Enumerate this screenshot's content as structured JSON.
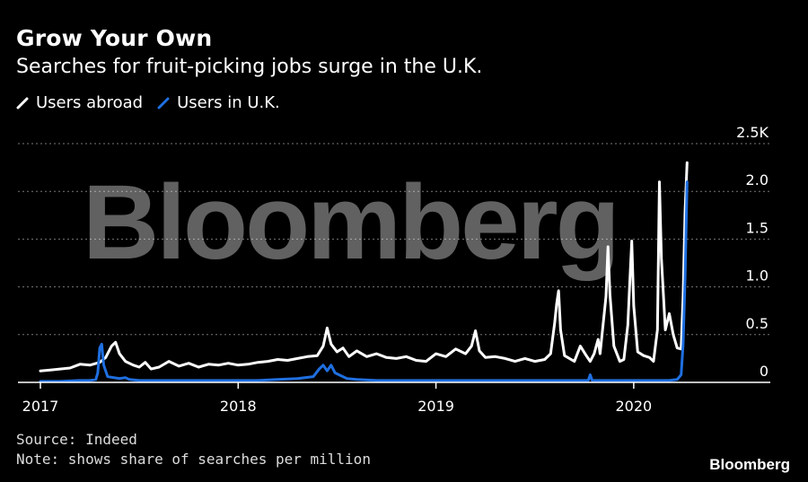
{
  "title": "Grow Your Own",
  "subtitle": "Searches for fruit-picking jobs surge in the U.K.",
  "source": "Source: Indeed",
  "note": "Note: shows share of searches per million",
  "brand": "Bloomberg",
  "watermark": "Bloomberg",
  "colors": {
    "abroad": "#ffffff",
    "uk": "#1f6fe0",
    "grid": "#777777",
    "background": "#000000"
  },
  "chart_data": {
    "type": "line",
    "y_unit_note": "share of searches per million",
    "ylim": [
      0,
      2.5
    ],
    "yticks": [
      0,
      0.5,
      1.0,
      1.5,
      2.0,
      2.5
    ],
    "ytick_labels": [
      "0",
      "0.5",
      "1.0",
      "1.5",
      "2.0",
      "2.5K"
    ],
    "xlim": [
      2017.0,
      2020.45
    ],
    "xticks": [
      2017,
      2018,
      2019,
      2020
    ],
    "xtick_labels": [
      "2017",
      "2018",
      "2019",
      "2020"
    ],
    "grid": true,
    "legend_position": "top-left",
    "series": [
      {
        "name": "Users abroad",
        "color": "#ffffff",
        "points": [
          [
            2017.0,
            0.12
          ],
          [
            2017.05,
            0.13
          ],
          [
            2017.1,
            0.14
          ],
          [
            2017.15,
            0.15
          ],
          [
            2017.2,
            0.19
          ],
          [
            2017.25,
            0.18
          ],
          [
            2017.3,
            0.21
          ],
          [
            2017.33,
            0.26
          ],
          [
            2017.36,
            0.38
          ],
          [
            2017.38,
            0.42
          ],
          [
            2017.4,
            0.3
          ],
          [
            2017.43,
            0.22
          ],
          [
            2017.47,
            0.18
          ],
          [
            2017.5,
            0.16
          ],
          [
            2017.53,
            0.21
          ],
          [
            2017.56,
            0.14
          ],
          [
            2017.6,
            0.16
          ],
          [
            2017.65,
            0.22
          ],
          [
            2017.7,
            0.17
          ],
          [
            2017.75,
            0.2
          ],
          [
            2017.8,
            0.16
          ],
          [
            2017.85,
            0.19
          ],
          [
            2017.9,
            0.18
          ],
          [
            2017.95,
            0.2
          ],
          [
            2018.0,
            0.18
          ],
          [
            2018.05,
            0.19
          ],
          [
            2018.1,
            0.21
          ],
          [
            2018.15,
            0.22
          ],
          [
            2018.2,
            0.24
          ],
          [
            2018.25,
            0.23
          ],
          [
            2018.3,
            0.25
          ],
          [
            2018.35,
            0.27
          ],
          [
            2018.4,
            0.28
          ],
          [
            2018.43,
            0.38
          ],
          [
            2018.45,
            0.57
          ],
          [
            2018.47,
            0.4
          ],
          [
            2018.5,
            0.32
          ],
          [
            2018.53,
            0.36
          ],
          [
            2018.56,
            0.27
          ],
          [
            2018.6,
            0.33
          ],
          [
            2018.65,
            0.27
          ],
          [
            2018.7,
            0.3
          ],
          [
            2018.75,
            0.26
          ],
          [
            2018.8,
            0.25
          ],
          [
            2018.85,
            0.27
          ],
          [
            2018.9,
            0.23
          ],
          [
            2018.95,
            0.22
          ],
          [
            2019.0,
            0.3
          ],
          [
            2019.05,
            0.27
          ],
          [
            2019.1,
            0.35
          ],
          [
            2019.15,
            0.3
          ],
          [
            2019.18,
            0.38
          ],
          [
            2019.2,
            0.54
          ],
          [
            2019.22,
            0.33
          ],
          [
            2019.25,
            0.26
          ],
          [
            2019.3,
            0.27
          ],
          [
            2019.35,
            0.25
          ],
          [
            2019.4,
            0.22
          ],
          [
            2019.45,
            0.25
          ],
          [
            2019.5,
            0.22
          ],
          [
            2019.55,
            0.24
          ],
          [
            2019.58,
            0.3
          ],
          [
            2019.6,
            0.62
          ],
          [
            2019.61,
            0.82
          ],
          [
            2019.62,
            0.96
          ],
          [
            2019.63,
            0.55
          ],
          [
            2019.65,
            0.28
          ],
          [
            2019.7,
            0.22
          ],
          [
            2019.73,
            0.38
          ],
          [
            2019.76,
            0.28
          ],
          [
            2019.78,
            0.22
          ],
          [
            2019.8,
            0.3
          ],
          [
            2019.82,
            0.45
          ],
          [
            2019.83,
            0.3
          ],
          [
            2019.86,
            0.9
          ],
          [
            2019.87,
            1.42
          ],
          [
            2019.88,
            0.92
          ],
          [
            2019.9,
            0.38
          ],
          [
            2019.93,
            0.22
          ],
          [
            2019.95,
            0.24
          ],
          [
            2019.97,
            0.6
          ],
          [
            2019.98,
            1.05
          ],
          [
            2019.99,
            1.48
          ],
          [
            2020.0,
            0.8
          ],
          [
            2020.02,
            0.32
          ],
          [
            2020.05,
            0.28
          ],
          [
            2020.08,
            0.26
          ],
          [
            2020.1,
            0.22
          ],
          [
            2020.12,
            0.55
          ],
          [
            2020.13,
            2.1
          ],
          [
            2020.14,
            1.3
          ],
          [
            2020.16,
            0.55
          ],
          [
            2020.18,
            0.72
          ],
          [
            2020.2,
            0.5
          ],
          [
            2020.22,
            0.36
          ],
          [
            2020.24,
            0.35
          ],
          [
            2020.25,
            0.9
          ],
          [
            2020.26,
            1.8
          ],
          [
            2020.27,
            2.3
          ]
        ]
      },
      {
        "name": "Users in U.K.",
        "color": "#1f6fe0",
        "points": [
          [
            2017.0,
            0.01
          ],
          [
            2017.1,
            0.01
          ],
          [
            2017.2,
            0.02
          ],
          [
            2017.25,
            0.02
          ],
          [
            2017.28,
            0.03
          ],
          [
            2017.29,
            0.1
          ],
          [
            2017.3,
            0.36
          ],
          [
            2017.31,
            0.4
          ],
          [
            2017.32,
            0.18
          ],
          [
            2017.34,
            0.06
          ],
          [
            2017.37,
            0.05
          ],
          [
            2017.4,
            0.04
          ],
          [
            2017.43,
            0.05
          ],
          [
            2017.45,
            0.03
          ],
          [
            2017.5,
            0.02
          ],
          [
            2017.6,
            0.02
          ],
          [
            2017.7,
            0.02
          ],
          [
            2017.8,
            0.02
          ],
          [
            2017.9,
            0.02
          ],
          [
            2018.0,
            0.02
          ],
          [
            2018.1,
            0.02
          ],
          [
            2018.2,
            0.03
          ],
          [
            2018.3,
            0.04
          ],
          [
            2018.38,
            0.06
          ],
          [
            2018.41,
            0.14
          ],
          [
            2018.43,
            0.18
          ],
          [
            2018.45,
            0.12
          ],
          [
            2018.47,
            0.18
          ],
          [
            2018.49,
            0.1
          ],
          [
            2018.52,
            0.07
          ],
          [
            2018.55,
            0.04
          ],
          [
            2018.6,
            0.03
          ],
          [
            2018.7,
            0.02
          ],
          [
            2018.8,
            0.02
          ],
          [
            2018.9,
            0.02
          ],
          [
            2019.0,
            0.02
          ],
          [
            2019.1,
            0.02
          ],
          [
            2019.2,
            0.02
          ],
          [
            2019.3,
            0.02
          ],
          [
            2019.4,
            0.02
          ],
          [
            2019.5,
            0.02
          ],
          [
            2019.6,
            0.02
          ],
          [
            2019.7,
            0.02
          ],
          [
            2019.77,
            0.02
          ],
          [
            2019.78,
            0.08
          ],
          [
            2019.79,
            0.02
          ],
          [
            2019.9,
            0.02
          ],
          [
            2020.0,
            0.02
          ],
          [
            2020.1,
            0.02
          ],
          [
            2020.18,
            0.02
          ],
          [
            2020.22,
            0.03
          ],
          [
            2020.24,
            0.08
          ],
          [
            2020.25,
            0.4
          ],
          [
            2020.26,
            1.1
          ],
          [
            2020.27,
            2.1
          ]
        ]
      }
    ]
  }
}
